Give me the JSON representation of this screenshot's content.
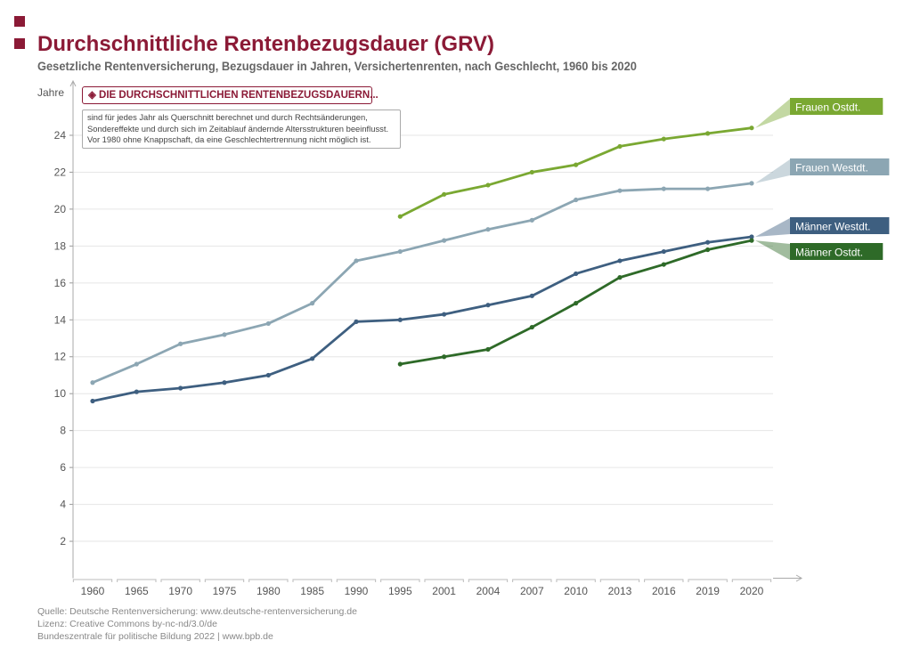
{
  "header": {
    "title": "Durchschnittliche Rentenbezugsdauer (GRV)",
    "subtitle": "Gesetzliche Rentenversicherung, Bezugsdauer in Jahren, Versichertenrenten, nach Geschlecht, 1960 bis 2020"
  },
  "info_box": {
    "icon": "layers-icon",
    "heading": "DIE DURCHSCHNITTLICHEN RENTENBEZUGSDAUERN...",
    "lines": [
      "sind für jedes Jahr als Querschnitt berechnet und durch Rechtsänderungen,",
      "Sondereffekte und durch sich im Zeitablauf ändernde Altersstrukturen beeinflusst.",
      "Vor 1980 ohne Knappschaft, da eine Geschlechtertrennung nicht möglich ist."
    ]
  },
  "footer": {
    "source": "Quelle: Deutsche Rentenversicherung: www.deutsche-rentenversicherung.de",
    "license": "Lizenz: Creative Commons by-nc-nd/3.0/de",
    "publisher": "Bundeszentrale für politische Bildung 2022 | www.bpb.de"
  },
  "chart_data": {
    "type": "line",
    "title": "Durchschnittliche Rentenbezugsdauer (GRV)",
    "ylabel": "Jahre",
    "xlabel": "",
    "ylim": [
      0,
      25
    ],
    "yticks": [
      2,
      4,
      6,
      8,
      10,
      12,
      14,
      16,
      18,
      20,
      22,
      24
    ],
    "grid": true,
    "legend": "right, labels at line ends",
    "categories": [
      "1960",
      "1965",
      "1970",
      "1975",
      "1980",
      "1985",
      "1990",
      "1995",
      "2001",
      "2004",
      "2007",
      "2010",
      "2013",
      "2016",
      "2019",
      "2020"
    ],
    "series": [
      {
        "name": "Frauen Ostdt.",
        "color": "#7aa832",
        "values": [
          null,
          null,
          null,
          null,
          null,
          null,
          null,
          19.6,
          20.8,
          21.3,
          22.0,
          22.4,
          23.4,
          23.8,
          24.1,
          24.4
        ]
      },
      {
        "name": "Frauen Westdt.",
        "color": "#8ca6b3",
        "values": [
          10.6,
          11.6,
          12.7,
          13.2,
          13.8,
          14.9,
          17.2,
          17.7,
          18.3,
          18.9,
          19.4,
          20.5,
          21.0,
          21.1,
          21.1,
          21.4
        ]
      },
      {
        "name": "Männer Westdt.",
        "color": "#3e5f80",
        "values": [
          9.6,
          10.1,
          10.3,
          10.6,
          11.0,
          11.9,
          13.9,
          14.0,
          14.3,
          14.8,
          15.3,
          16.5,
          17.2,
          17.7,
          18.2,
          18.5
        ]
      },
      {
        "name": "Männer Ostdt.",
        "color": "#2e6a28",
        "values": [
          null,
          null,
          null,
          null,
          null,
          null,
          null,
          11.6,
          12.0,
          12.4,
          13.6,
          14.9,
          16.3,
          17.0,
          17.8,
          18.3
        ]
      }
    ]
  },
  "colors": {
    "brand": "#8b1a36"
  }
}
